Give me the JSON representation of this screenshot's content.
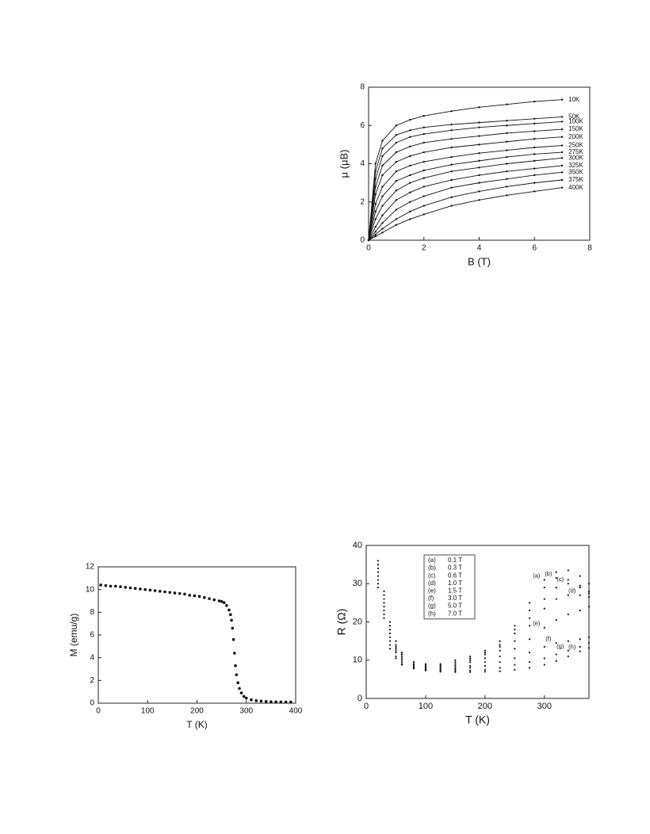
{
  "chart_data": [
    {
      "type": "line",
      "xlabel": "B (T)",
      "ylabel": "μ (μB)",
      "color": "#111111",
      "x": [
        0,
        0.25,
        0.5,
        1,
        1.5,
        2,
        3,
        4,
        5,
        6,
        7
      ],
      "series": [
        {
          "name": "10K",
          "values": [
            0,
            4.0,
            5.2,
            6.0,
            6.3,
            6.5,
            6.75,
            6.95,
            7.1,
            7.25,
            7.35
          ]
        },
        {
          "name": "50K",
          "values": [
            0,
            3.6,
            4.8,
            5.5,
            5.75,
            5.9,
            6.05,
            6.15,
            6.25,
            6.35,
            6.45
          ]
        },
        {
          "name": "100K",
          "values": [
            0,
            3.2,
            4.4,
            5.1,
            5.4,
            5.55,
            5.75,
            5.9,
            6.0,
            6.1,
            6.2
          ]
        },
        {
          "name": "150K",
          "values": [
            0,
            2.8,
            3.9,
            4.6,
            4.9,
            5.1,
            5.3,
            5.45,
            5.6,
            5.7,
            5.8
          ]
        },
        {
          "name": "200K",
          "values": [
            0,
            2.4,
            3.4,
            4.1,
            4.4,
            4.6,
            4.85,
            5.0,
            5.15,
            5.3,
            5.4
          ]
        },
        {
          "name": "250K",
          "values": [
            0,
            1.9,
            2.8,
            3.6,
            3.9,
            4.1,
            4.35,
            4.55,
            4.7,
            4.85,
            4.95
          ]
        },
        {
          "name": "275K",
          "values": [
            0,
            1.5,
            2.3,
            3.1,
            3.4,
            3.65,
            3.95,
            4.15,
            4.35,
            4.5,
            4.6
          ]
        },
        {
          "name": "300K",
          "values": [
            0,
            1.1,
            1.8,
            2.6,
            3.0,
            3.25,
            3.6,
            3.8,
            4.0,
            4.15,
            4.3
          ]
        },
        {
          "name": "325K",
          "values": [
            0,
            0.7,
            1.3,
            2.1,
            2.5,
            2.8,
            3.15,
            3.4,
            3.6,
            3.75,
            3.9
          ]
        },
        {
          "name": "350K",
          "values": [
            0,
            0.45,
            0.9,
            1.6,
            2.0,
            2.3,
            2.75,
            3.0,
            3.2,
            3.4,
            3.55
          ]
        },
        {
          "name": "375K",
          "values": [
            0,
            0.3,
            0.6,
            1.1,
            1.5,
            1.8,
            2.25,
            2.55,
            2.8,
            3.0,
            3.15
          ]
        },
        {
          "name": "400K",
          "values": [
            0,
            0.2,
            0.4,
            0.8,
            1.1,
            1.35,
            1.8,
            2.1,
            2.35,
            2.55,
            2.75
          ]
        }
      ],
      "xlim": [
        0,
        8
      ],
      "ylim": [
        0,
        8
      ],
      "xticks": [
        0,
        2,
        4,
        6,
        8
      ],
      "yticks": [
        0,
        2,
        4,
        6,
        8
      ]
    },
    {
      "type": "scatter",
      "xlabel": "T (K)",
      "ylabel": "M (emu/g)",
      "color": "#111111",
      "x": [
        5,
        15,
        25,
        35,
        45,
        55,
        65,
        75,
        85,
        95,
        105,
        115,
        125,
        135,
        145,
        155,
        165,
        175,
        185,
        195,
        205,
        215,
        225,
        235,
        245,
        250,
        255,
        260,
        265,
        268,
        270,
        272,
        274,
        276,
        278,
        280,
        283,
        286,
        290,
        295,
        300,
        310,
        320,
        330,
        340,
        350,
        360,
        370,
        380,
        390
      ],
      "values": [
        10.4,
        10.35,
        10.3,
        10.3,
        10.25,
        10.2,
        10.15,
        10.1,
        10.05,
        10.0,
        9.95,
        9.9,
        9.85,
        9.8,
        9.75,
        9.7,
        9.65,
        9.6,
        9.5,
        9.45,
        9.4,
        9.3,
        9.2,
        9.1,
        9.0,
        8.95,
        8.85,
        8.6,
        8.2,
        7.8,
        7.3,
        6.6,
        5.6,
        4.4,
        3.3,
        2.5,
        1.8,
        1.3,
        0.9,
        0.6,
        0.45,
        0.3,
        0.22,
        0.18,
        0.15,
        0.13,
        0.12,
        0.11,
        0.1,
        0.1
      ],
      "xlim": [
        0,
        400
      ],
      "ylim": [
        0,
        12
      ],
      "xticks": [
        0,
        100,
        200,
        300,
        400
      ],
      "yticks": [
        0,
        2,
        4,
        6,
        8,
        10,
        12
      ]
    },
    {
      "type": "scatter",
      "xlabel": "T (K)",
      "ylabel": "R (Ω)",
      "color": "#111111",
      "legend": "upper left",
      "x": [
        20,
        30,
        40,
        50,
        60,
        80,
        100,
        125,
        150,
        175,
        200,
        225,
        250,
        275,
        300,
        320,
        340,
        360,
        375
      ],
      "series": [
        {
          "tag": "(a)",
          "name": "0.1 T",
          "values": [
            36,
            28,
            20,
            15,
            12,
            9.5,
            9,
            9,
            10,
            11,
            12.5,
            15,
            19,
            25,
            31,
            33,
            33.5,
            32,
            30
          ]
        },
        {
          "tag": "(b)",
          "name": "0.3 T",
          "values": [
            35,
            27,
            19,
            14,
            11.5,
            9.5,
            8.8,
            8.7,
            9.5,
            10.5,
            12,
            14,
            18,
            23,
            29,
            31.5,
            31,
            29,
            27.5
          ]
        },
        {
          "tag": "(c)",
          "name": "0.6 T",
          "values": [
            34,
            26,
            18,
            13.5,
            11,
            9,
            8.5,
            8.4,
            9,
            10,
            11.5,
            13.5,
            17,
            21,
            26,
            29,
            30,
            29.5,
            28
          ]
        },
        {
          "tag": "(d)",
          "name": "1.0 T",
          "values": [
            33,
            25,
            17,
            13,
            10.5,
            8.8,
            8.2,
            8,
            8.5,
            9.5,
            10.5,
            12.5,
            15,
            19,
            23.5,
            26,
            27,
            27,
            26.5
          ]
        },
        {
          "tag": "(e)",
          "name": "1.5 T",
          "values": [
            32,
            24,
            16,
            12.5,
            10,
            8.5,
            8,
            7.8,
            8,
            8.5,
            9.5,
            11,
            13,
            15.5,
            18.5,
            20.5,
            22,
            23,
            24
          ]
        },
        {
          "tag": "(f)",
          "name": "3.0 T",
          "values": [
            31,
            23,
            15,
            12,
            9.5,
            8.2,
            7.8,
            7.5,
            7.6,
            8,
            8.5,
            9.5,
            10.5,
            12,
            13.5,
            14.5,
            15,
            15.5,
            16
          ]
        },
        {
          "tag": "(g)",
          "name": "5.0 T",
          "values": [
            30,
            22,
            14,
            11,
            9,
            8,
            7.5,
            7.2,
            7.2,
            7.3,
            7.5,
            8,
            8.8,
            9.5,
            10.5,
            11.5,
            12.5,
            13.5,
            14.5
          ]
        },
        {
          "tag": "(h)",
          "name": "7.0 T",
          "values": [
            29,
            21,
            13,
            10.5,
            8.8,
            7.8,
            7.3,
            7,
            6.9,
            6.9,
            7,
            7.1,
            7.5,
            8,
            8.8,
            9.8,
            11,
            12.3,
            13.2
          ]
        }
      ],
      "xlim": [
        0,
        375
      ],
      "ylim": [
        0,
        40
      ],
      "xticks": [
        0,
        100,
        200,
        300
      ],
      "yticks": [
        0,
        10,
        20,
        30,
        40
      ]
    }
  ]
}
